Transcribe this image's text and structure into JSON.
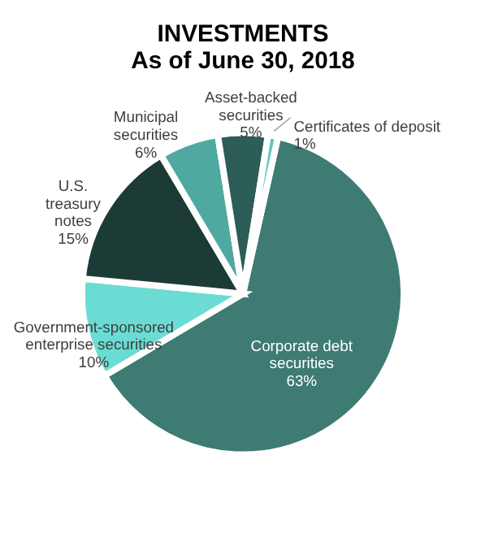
{
  "chart_data": {
    "type": "pie",
    "title": "INVESTMENTS\nAs of June 30, 2018",
    "categories": [
      "Corporate debt securities",
      "Government-sponsored enterprise securities",
      "U.S. treasury notes",
      "Municipal securities",
      "Asset-backed securities",
      "Certificates of deposit"
    ],
    "values": [
      63,
      10,
      15,
      6,
      5,
      1
    ],
    "colors": [
      "#3d7b73",
      "#6adcd3",
      "#1d3b36",
      "#4fa9a0",
      "#2c5d57",
      "#5cc9bf"
    ],
    "value_labels": [
      "63%",
      "10%",
      "15%",
      "6%",
      "5%",
      "1%"
    ]
  }
}
